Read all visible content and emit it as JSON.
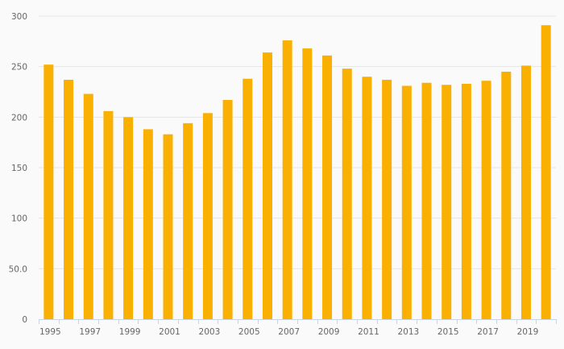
{
  "chart_data": {
    "type": "bar",
    "title": "",
    "xlabel": "",
    "ylabel": "",
    "categories": [
      "1995",
      "1996",
      "1997",
      "1998",
      "1999",
      "2000",
      "2001",
      "2002",
      "2003",
      "2004",
      "2005",
      "2006",
      "2007",
      "2008",
      "2009",
      "2010",
      "2011",
      "2012",
      "2013",
      "2014",
      "2015",
      "2016",
      "2017",
      "2018",
      "2019",
      "2020"
    ],
    "values": [
      252,
      237,
      223,
      206,
      200,
      188,
      183,
      194,
      204,
      217,
      238,
      264,
      276,
      268,
      261,
      248,
      240,
      237,
      231,
      234,
      232,
      233,
      236,
      245,
      251,
      291
    ],
    "ylim": [
      0,
      300
    ],
    "yticks": [
      0,
      50,
      100,
      150,
      200,
      250,
      300
    ],
    "ytick_labels": [
      "0",
      "50.0",
      "100",
      "150",
      "200",
      "250",
      "300"
    ],
    "xtick_labels": [
      "1995",
      "1997",
      "1999",
      "2001",
      "2003",
      "2005",
      "2007",
      "2009",
      "2011",
      "2013",
      "2015",
      "2017",
      "2019"
    ],
    "grid": true,
    "colors": {
      "bar": "#f9b000",
      "grid": "#e6e6e6",
      "axis": "#c8d4e6"
    }
  }
}
